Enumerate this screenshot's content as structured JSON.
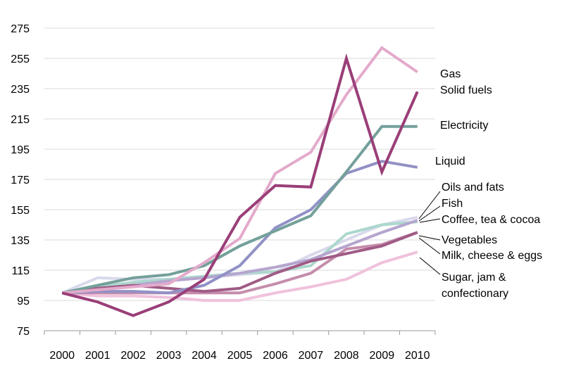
{
  "chart_data": {
    "type": "line",
    "title": "",
    "xlabel": "",
    "ylabel": "",
    "ylim": [
      75,
      275
    ],
    "yticks": [
      75,
      95,
      115,
      135,
      155,
      175,
      195,
      215,
      235,
      255,
      275
    ],
    "grid": "horizontal",
    "legend": "right (direct labels)",
    "x": [
      "2000",
      "2001",
      "2002",
      "2003",
      "2004",
      "2005",
      "2006",
      "2007",
      "2008",
      "2009",
      "2010"
    ],
    "series": [
      {
        "name": "Sugar, jam & confectionary",
        "color": "#f0c2dc",
        "values": [
          100,
          98,
          98,
          97,
          95,
          95,
          100,
          104,
          109,
          120,
          127
        ]
      },
      {
        "name": "Milk, cheese & eggs",
        "color": "#c58dab",
        "values": [
          100,
          100,
          100,
          100,
          100,
          100,
          106,
          113,
          129,
          132,
          140
        ]
      },
      {
        "name": "Coffee, tea & cocoa",
        "color": "#d9d9ec",
        "values": [
          100,
          110,
          109,
          109,
          110,
          112,
          114,
          125,
          135,
          145,
          150
        ]
      },
      {
        "name": "Fish",
        "color": "#acd7cd",
        "values": [
          100,
          104,
          107,
          109,
          111,
          113,
          114,
          118,
          139,
          145,
          147
        ]
      },
      {
        "name": "Oils and fats",
        "color": "#b5a5cf",
        "values": [
          100,
          103,
          105,
          108,
          110,
          113,
          117,
          122,
          131,
          140,
          148
        ]
      },
      {
        "name": "Vegetables",
        "color": "#a05b86",
        "values": [
          100,
          103,
          105,
          103,
          101,
          103,
          113,
          121,
          126,
          131,
          140
        ]
      },
      {
        "name": "Liquid",
        "color": "#9191c6",
        "values": [
          100,
          101,
          101,
          100,
          105,
          118,
          143,
          155,
          179,
          187,
          183
        ]
      },
      {
        "name": "Electricity",
        "color": "#74a09a",
        "values": [
          100,
          105,
          110,
          112,
          118,
          131,
          141,
          151,
          180,
          210,
          210
        ]
      },
      {
        "name": "Gas",
        "color": "#e3aacb",
        "values": [
          100,
          102,
          104,
          106,
          120,
          136,
          179,
          193,
          231,
          262,
          246
        ]
      },
      {
        "name": "Solid fuels",
        "color": "#9a3e78",
        "values": [
          100,
          94,
          85,
          94,
          109,
          150,
          171,
          170,
          255,
          180,
          233
        ]
      }
    ]
  }
}
